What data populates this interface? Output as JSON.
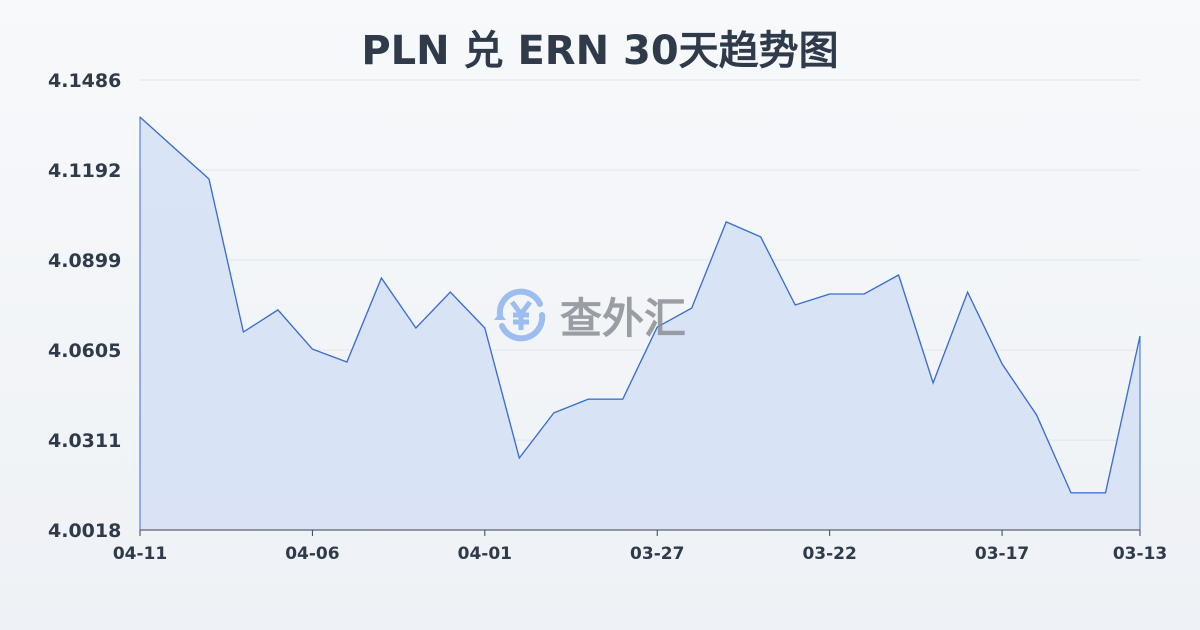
{
  "chart_data": {
    "type": "area",
    "title": "PLN 兑 ERN 30天趋势图",
    "xlabel": "",
    "ylabel": "",
    "ylim": [
      4.0018,
      4.1486
    ],
    "yticks": [
      "4.1486",
      "4.1192",
      "4.0899",
      "4.0605",
      "4.0311",
      "4.0018"
    ],
    "xticks": [
      "04-11",
      "04-06",
      "04-01",
      "03-27",
      "03-22",
      "03-17",
      "03-13"
    ],
    "grid": true,
    "x": [
      "04-11",
      "04-10",
      "04-09",
      "04-08",
      "04-07",
      "04-06",
      "04-05",
      "04-04",
      "04-03",
      "04-02",
      "04-01",
      "03-31",
      "03-30",
      "03-29",
      "03-28",
      "03-27",
      "03-26",
      "03-25",
      "03-24",
      "03-23",
      "03-22",
      "03-21",
      "03-20",
      "03-19",
      "03-18",
      "03-17",
      "03-16",
      "03-15",
      "03-14",
      "03-13"
    ],
    "values": [
      4.1365,
      4.1264,
      4.1163,
      4.0664,
      4.0736,
      4.0608,
      4.0566,
      4.084,
      4.0677,
      4.0794,
      4.0677,
      4.0253,
      4.04,
      4.0445,
      4.0445,
      4.068,
      4.0742,
      4.1023,
      4.0974,
      4.0752,
      4.0788,
      4.0788,
      4.085,
      4.0498,
      4.0794,
      4.056,
      4.0393,
      4.0139,
      4.0139,
      4.0651
    ],
    "colors": {
      "line": "#3a6fd0",
      "fill": "#d6e1f5",
      "grid": "#e1e5eb"
    }
  },
  "watermark": {
    "text": "查外汇",
    "icon": "yen-exchange-icon"
  }
}
